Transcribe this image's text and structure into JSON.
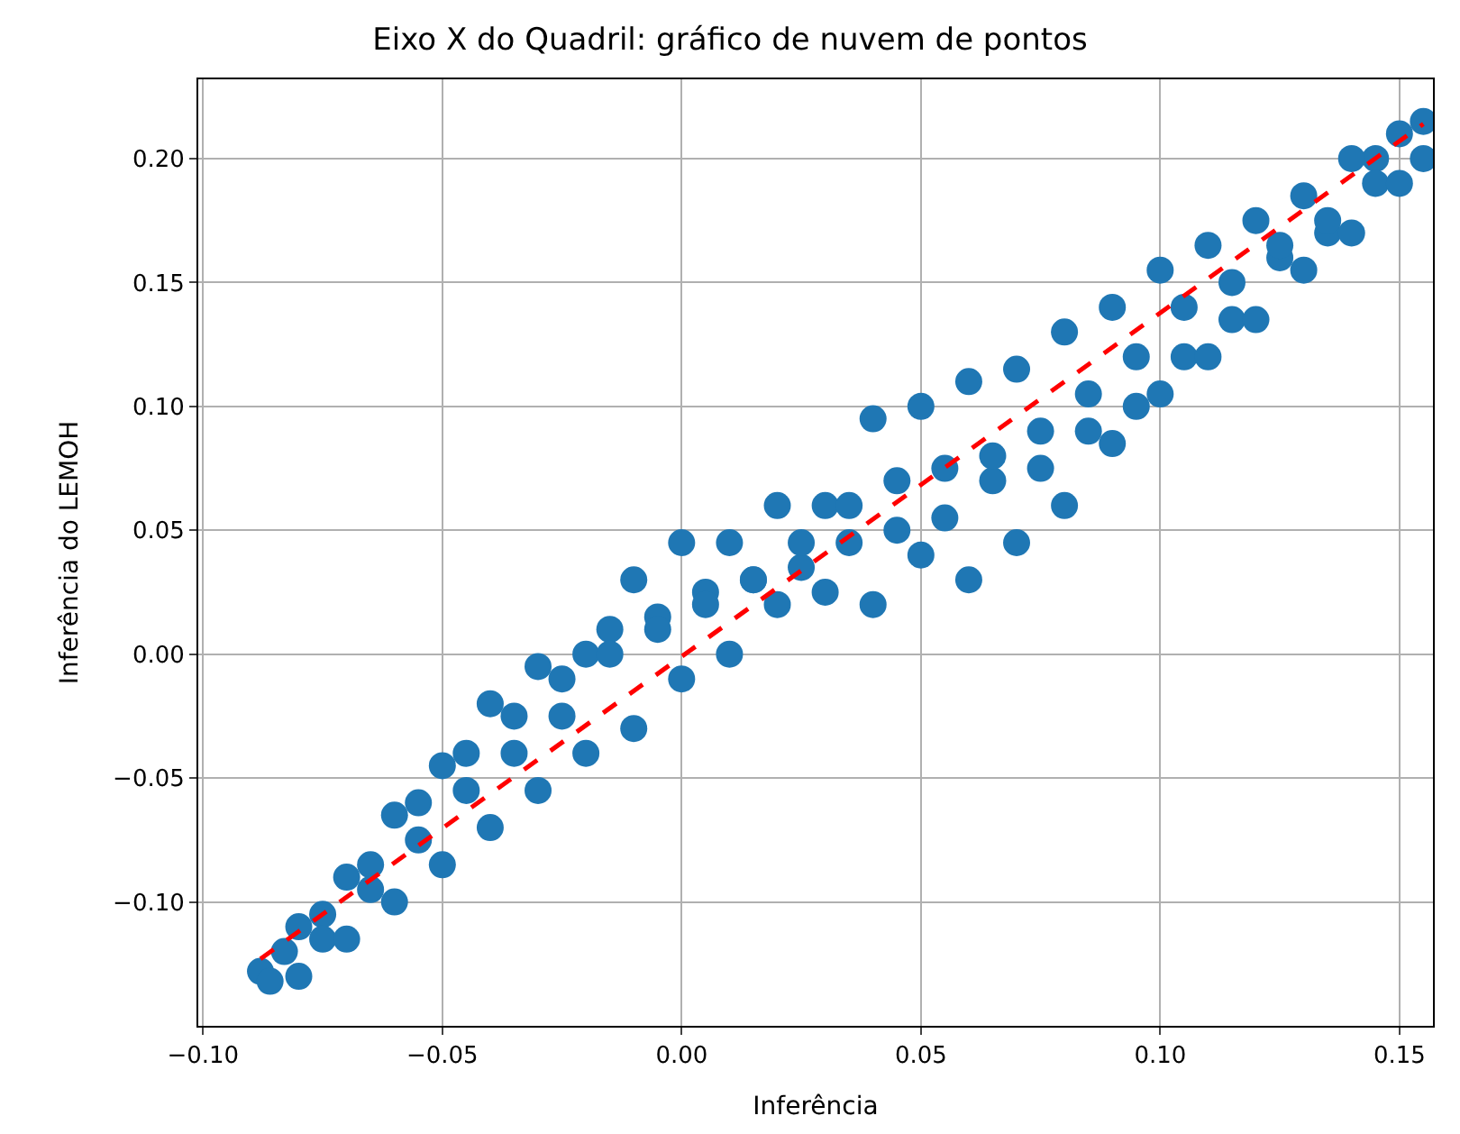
{
  "chart_data": {
    "type": "scatter",
    "title": "Eixo X do Quadril: gráfico de nuvem de pontos",
    "xlabel": "Inferência",
    "ylabel": "Inferência do LEMOH",
    "xlim": [
      -0.101,
      0.157
    ],
    "ylim": [
      -0.15,
      0.232
    ],
    "xticks": [
      {
        "value": -0.1,
        "label": "−0.10"
      },
      {
        "value": -0.05,
        "label": "−0.05"
      },
      {
        "value": 0.0,
        "label": "0.00"
      },
      {
        "value": 0.05,
        "label": "0.05"
      },
      {
        "value": 0.1,
        "label": "0.10"
      },
      {
        "value": 0.15,
        "label": "0.15"
      }
    ],
    "yticks": [
      {
        "value": -0.1,
        "label": "−0.10"
      },
      {
        "value": -0.05,
        "label": "−0.05"
      },
      {
        "value": 0.0,
        "label": "0.00"
      },
      {
        "value": 0.05,
        "label": "0.05"
      },
      {
        "value": 0.1,
        "label": "0.10"
      },
      {
        "value": 0.15,
        "label": "0.15"
      },
      {
        "value": 0.2,
        "label": "0.20"
      }
    ],
    "grid": true,
    "marker": "circle",
    "series": [
      {
        "color": "#1f77b4",
        "x": [
          -0.083,
          -0.075,
          -0.065,
          -0.055,
          -0.045,
          -0.035,
          -0.025,
          -0.015,
          -0.005,
          0.005,
          0.015,
          0.025,
          0.035,
          0.045,
          0.055,
          0.065,
          0.075,
          0.085,
          0.095,
          0.105,
          0.115,
          0.125,
          0.135,
          0.145,
          -0.088,
          -0.086,
          -0.08,
          -0.08,
          -0.075,
          -0.07,
          -0.07,
          -0.065,
          -0.06,
          -0.06,
          -0.055,
          -0.05,
          -0.05,
          -0.045,
          -0.04,
          -0.04,
          -0.035,
          -0.03,
          -0.03,
          -0.025,
          -0.02,
          -0.02,
          -0.015,
          -0.01,
          -0.01,
          -0.005,
          0.0,
          0.0,
          0.005,
          0.01,
          0.01,
          0.015,
          0.02,
          0.02,
          0.025,
          0.03,
          0.03,
          0.035,
          0.04,
          0.04,
          0.045,
          0.05,
          0.05,
          0.055,
          0.06,
          0.06,
          0.065,
          0.07,
          0.07,
          0.075,
          0.08,
          0.08,
          0.085,
          0.09,
          0.09,
          0.095,
          0.1,
          0.1,
          0.105,
          0.11,
          0.11,
          0.115,
          0.12,
          0.12,
          0.125,
          0.13,
          0.13,
          0.135,
          0.14,
          0.14,
          0.145,
          0.15,
          0.15,
          0.155,
          0.155
        ],
        "values": [
          -0.12,
          -0.105,
          -0.085,
          -0.06,
          -0.04,
          -0.025,
          -0.01,
          0.01,
          0.015,
          0.025,
          0.03,
          0.035,
          0.045,
          0.05,
          0.055,
          0.07,
          0.075,
          0.09,
          0.1,
          0.12,
          0.135,
          0.16,
          0.17,
          0.2,
          -0.128,
          -0.132,
          -0.11,
          -0.13,
          -0.115,
          -0.09,
          -0.115,
          -0.095,
          -0.065,
          -0.1,
          -0.075,
          -0.045,
          -0.085,
          -0.055,
          -0.02,
          -0.07,
          -0.04,
          -0.005,
          -0.055,
          -0.025,
          0.0,
          -0.04,
          0.0,
          0.03,
          -0.03,
          0.01,
          0.045,
          -0.01,
          0.02,
          0.045,
          0.0,
          0.03,
          0.06,
          0.02,
          0.045,
          0.06,
          0.025,
          0.06,
          0.095,
          0.02,
          0.07,
          0.1,
          0.04,
          0.075,
          0.11,
          0.03,
          0.08,
          0.115,
          0.045,
          0.09,
          0.13,
          0.06,
          0.105,
          0.14,
          0.085,
          0.12,
          0.155,
          0.105,
          0.14,
          0.165,
          0.12,
          0.15,
          0.175,
          0.135,
          0.165,
          0.185,
          0.155,
          0.175,
          0.2,
          0.17,
          0.19,
          0.21,
          0.19,
          0.215,
          0.2
        ]
      },
      {
        "type": "line",
        "color": "#ff0000",
        "line_style": "dashed",
        "marker": "none",
        "x": [
          -0.088,
          0.155
        ],
        "values": [
          -0.123,
          0.214
        ]
      }
    ]
  }
}
